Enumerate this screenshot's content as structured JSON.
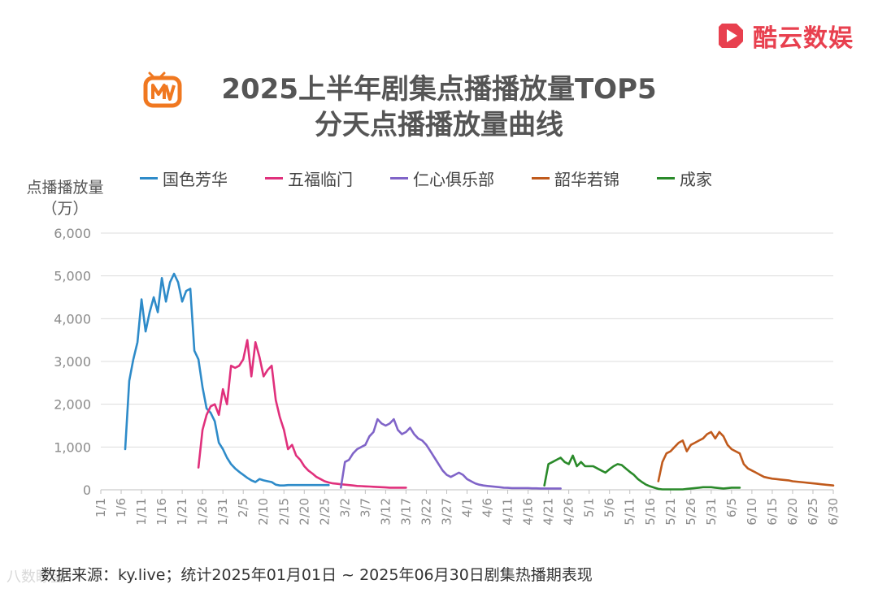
{
  "brand": {
    "name": "酷云数娱"
  },
  "title": {
    "line1": "2025上半年剧集点播播放量TOP5",
    "line2": "分天点播播放量曲线"
  },
  "source": "数据来源：ky.live；统计2025年01月01日 ~ 2025年06月30日剧集热播期表现",
  "watermark": "八数瞭望",
  "chart_data": {
    "type": "line",
    "ylabel": "点播播放量（万）",
    "ylabel_lines": [
      "点播播放量",
      "（万）"
    ],
    "ylim": [
      0,
      6000
    ],
    "yticks": [
      "0",
      "1,000",
      "2,000",
      "3,000",
      "4,000",
      "5,000",
      "6,000"
    ],
    "ytick_values": [
      0,
      1000,
      2000,
      3000,
      4000,
      5000,
      6000
    ],
    "xticks": [
      "1/1",
      "1/6",
      "1/11",
      "1/16",
      "1/21",
      "1/26",
      "1/31",
      "2/5",
      "2/10",
      "2/15",
      "2/20",
      "2/25",
      "3/2",
      "3/7",
      "3/12",
      "3/17",
      "3/22",
      "3/27",
      "4/1",
      "4/6",
      "4/11",
      "4/16",
      "4/21",
      "4/26",
      "5/1",
      "5/6",
      "5/11",
      "5/16",
      "5/21",
      "5/26",
      "5/31",
      "6/5",
      "6/10",
      "6/15",
      "6/20",
      "6/25",
      "6/30"
    ],
    "x_unit": "day of 2025 (1 = Jan 1)",
    "xlim": [
      1,
      181
    ],
    "grid": true,
    "legend_position": "top",
    "series": [
      {
        "name": "国色芳华",
        "color": "#2e8bc9",
        "x": [
          7,
          8,
          9,
          10,
          11,
          12,
          13,
          14,
          15,
          16,
          17,
          18,
          19,
          20,
          21,
          22,
          23,
          24,
          25,
          26,
          27,
          28,
          29,
          30,
          31,
          32,
          33,
          34,
          35,
          36,
          37,
          38,
          39,
          40,
          41,
          42,
          43,
          44,
          45,
          46,
          47,
          48,
          49,
          50,
          51,
          52,
          53,
          54,
          55,
          56,
          57
        ],
        "y": [
          950,
          2550,
          3050,
          3450,
          4450,
          3700,
          4150,
          4500,
          4150,
          4950,
          4400,
          4850,
          5050,
          4850,
          4400,
          4650,
          4700,
          3250,
          3050,
          2400,
          1900,
          1800,
          1600,
          1100,
          950,
          750,
          600,
          500,
          420,
          350,
          280,
          220,
          180,
          250,
          220,
          200,
          180,
          120,
          100,
          100,
          110,
          110,
          110,
          110,
          110,
          110,
          110,
          110,
          110,
          110,
          110
        ]
      },
      {
        "name": "五福临门",
        "color": "#e0307c",
        "x": [
          25,
          26,
          27,
          28,
          29,
          30,
          31,
          32,
          33,
          34,
          35,
          36,
          37,
          38,
          39,
          40,
          41,
          42,
          43,
          44,
          45,
          46,
          47,
          48,
          49,
          50,
          51,
          52,
          53,
          54,
          55,
          56,
          57,
          58,
          59,
          60,
          61,
          62,
          63,
          64,
          65,
          66,
          67,
          68,
          69,
          70,
          71,
          72,
          73,
          74,
          75,
          76
        ],
        "y": [
          520,
          1400,
          1750,
          1950,
          2000,
          1750,
          2350,
          2000,
          2900,
          2850,
          2900,
          3050,
          3500,
          2650,
          3450,
          3100,
          2650,
          2800,
          2900,
          2100,
          1700,
          1400,
          950,
          1050,
          800,
          700,
          550,
          450,
          380,
          300,
          250,
          200,
          170,
          150,
          140,
          130,
          120,
          110,
          100,
          90,
          85,
          80,
          75,
          70,
          65,
          60,
          55,
          50,
          50,
          50,
          50,
          50
        ]
      },
      {
        "name": "仁心俱乐部",
        "color": "#8064c8",
        "x": [
          60,
          61,
          62,
          63,
          64,
          65,
          66,
          67,
          68,
          69,
          70,
          71,
          72,
          73,
          74,
          75,
          76,
          77,
          78,
          79,
          80,
          81,
          82,
          83,
          84,
          85,
          86,
          87,
          88,
          89,
          90,
          91,
          92,
          93,
          94,
          95,
          96,
          97,
          98,
          99,
          100,
          101,
          102,
          103,
          104,
          105,
          106,
          107,
          108,
          109,
          110,
          111,
          112,
          113,
          114
        ],
        "y": [
          50,
          650,
          700,
          850,
          950,
          1000,
          1050,
          1250,
          1350,
          1650,
          1550,
          1500,
          1550,
          1650,
          1400,
          1300,
          1350,
          1450,
          1300,
          1200,
          1150,
          1050,
          900,
          750,
          600,
          450,
          350,
          300,
          350,
          400,
          350,
          250,
          200,
          150,
          120,
          100,
          90,
          80,
          70,
          60,
          50,
          45,
          40,
          40,
          40,
          40,
          40,
          35,
          35,
          30,
          30,
          30,
          30,
          30,
          30
        ]
      },
      {
        "name": "韶华若锦",
        "color": "#c05a1c",
        "x": [
          138,
          139,
          140,
          141,
          142,
          143,
          144,
          145,
          146,
          147,
          148,
          149,
          150,
          151,
          152,
          153,
          154,
          155,
          156,
          157,
          158,
          159,
          160,
          161,
          162,
          163,
          164,
          165,
          166,
          167,
          168,
          169,
          170,
          171,
          172,
          173,
          174,
          175,
          176,
          177,
          178,
          179,
          180,
          181
        ],
        "y": [
          200,
          650,
          850,
          900,
          1000,
          1100,
          1150,
          900,
          1050,
          1100,
          1150,
          1200,
          1300,
          1350,
          1200,
          1350,
          1250,
          1050,
          950,
          900,
          850,
          600,
          500,
          450,
          400,
          350,
          300,
          280,
          260,
          250,
          240,
          230,
          220,
          200,
          190,
          180,
          170,
          160,
          150,
          140,
          130,
          120,
          110,
          100
        ]
      },
      {
        "name": "成家",
        "color": "#2a8a2a",
        "x": [
          110,
          111,
          112,
          113,
          114,
          115,
          116,
          117,
          118,
          119,
          120,
          121,
          122,
          123,
          124,
          125,
          126,
          127,
          128,
          129,
          130,
          131,
          132,
          133,
          134,
          135,
          136,
          137,
          138,
          139,
          140,
          141,
          142,
          143,
          144,
          145,
          146,
          147,
          148,
          149,
          150,
          151,
          152,
          153,
          154,
          155,
          156,
          157,
          158
        ],
        "y": [
          100,
          600,
          650,
          700,
          750,
          650,
          600,
          800,
          550,
          650,
          550,
          550,
          550,
          500,
          450,
          400,
          480,
          550,
          600,
          580,
          500,
          420,
          350,
          250,
          180,
          120,
          80,
          50,
          20,
          10,
          10,
          10,
          10,
          10,
          10,
          20,
          30,
          40,
          50,
          60,
          60,
          60,
          50,
          40,
          30,
          40,
          50,
          50,
          50
        ]
      }
    ]
  }
}
